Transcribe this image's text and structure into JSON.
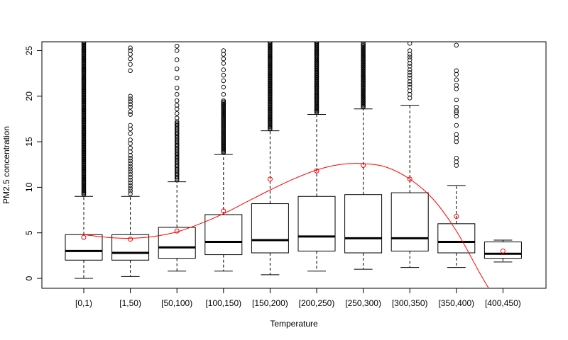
{
  "chart_data": {
    "type": "box",
    "xlabel": "Temperature",
    "ylabel": "PM2.5 concentration",
    "ylim": [
      -1,
      26
    ],
    "yticks": [
      0,
      5,
      10,
      15,
      20,
      25
    ],
    "categories": [
      "[0,1)",
      "[1,50)",
      "[50,100)",
      "[100,150)",
      "[150,200)",
      "[200,250)",
      "[250,300)",
      "[300,350)",
      "[350,400)",
      "[400,450)"
    ],
    "boxes": [
      {
        "whisker_low": 0.0,
        "q1": 2.0,
        "median": 3.0,
        "q3": 4.8,
        "whisker_high": 9.0,
        "mean": 4.5,
        "outliers_from": 9.2,
        "outliers_to": 26,
        "outlier_count": 140
      },
      {
        "whisker_low": 0.2,
        "q1": 2.0,
        "median": 2.8,
        "q3": 4.8,
        "whisker_high": 9.0,
        "mean": 4.3,
        "outliers": [
          9.3,
          9.6,
          9.9,
          10.2,
          10.5,
          10.8,
          11.1,
          11.4,
          11.7,
          12.0,
          12.3,
          12.6,
          12.9,
          13.2,
          13.5,
          13.9,
          14.3,
          14.8,
          15.2,
          15.9,
          16.4,
          16.8,
          18.0,
          18.3,
          18.8,
          19.1,
          19.4,
          19.7,
          20.0,
          22.8,
          23.5,
          24.1,
          24.6,
          25.0,
          25.3
        ]
      },
      {
        "whisker_low": 0.8,
        "q1": 2.2,
        "median": 3.4,
        "q3": 5.6,
        "whisker_high": 10.6,
        "mean": 5.2,
        "outliers_from": 10.8,
        "outliers_to": 17.2,
        "outlier_count": 45,
        "outliers": [
          17.6,
          18.1,
          18.6,
          19.0,
          19.5,
          20.2,
          20.9,
          22.0,
          23.0,
          24.0,
          25.0,
          25.5
        ]
      },
      {
        "whisker_low": 0.8,
        "q1": 2.6,
        "median": 4.0,
        "q3": 7.0,
        "whisker_high": 13.6,
        "mean": 7.4,
        "outliers_from": 13.8,
        "outliers_to": 19.5,
        "outlier_count": 50,
        "outliers": [
          20.2,
          21.0,
          21.7,
          22.3,
          22.9,
          23.6,
          24.1,
          24.6,
          25.0
        ]
      },
      {
        "whisker_low": 0.4,
        "q1": 2.8,
        "median": 4.2,
        "q3": 8.2,
        "whisker_high": 16.2,
        "mean": 10.9,
        "outliers_from": 16.4,
        "outliers_to": 26,
        "outlier_count": 80
      },
      {
        "whisker_low": 0.8,
        "q1": 3.0,
        "median": 4.6,
        "q3": 9.0,
        "whisker_high": 18.0,
        "mean": 11.8,
        "outliers_from": 18.2,
        "outliers_to": 26,
        "outlier_count": 70
      },
      {
        "whisker_low": 1.0,
        "q1": 2.8,
        "median": 4.4,
        "q3": 9.2,
        "whisker_high": 18.6,
        "mean": 12.4,
        "outliers_from": 18.8,
        "outliers_to": 25.8,
        "outlier_count": 60
      },
      {
        "whisker_low": 1.2,
        "q1": 3.0,
        "median": 4.4,
        "q3": 9.4,
        "whisker_high": 19.0,
        "mean": 10.9,
        "outliers": [
          19.8,
          20.2,
          20.6,
          21.0,
          21.3,
          21.6,
          22.0,
          22.3,
          22.6,
          22.9,
          23.3,
          23.6,
          24.0,
          24.3,
          24.6,
          25.0,
          25.8
        ]
      },
      {
        "whisker_low": 1.2,
        "q1": 2.8,
        "median": 4.0,
        "q3": 6.0,
        "whisker_high": 10.2,
        "mean": 6.8,
        "outliers": [
          12.4,
          12.8,
          13.2,
          15.0,
          15.4,
          15.8,
          16.8,
          17.8,
          18.2,
          18.4,
          18.8,
          19.6,
          20.8,
          21.2,
          21.8,
          22.4,
          22.8,
          25.6
        ]
      },
      {
        "whisker_low": 1.8,
        "q1": 2.2,
        "median": 2.7,
        "q3": 4.0,
        "whisker_high": 4.2,
        "mean": 3.0,
        "outliers": []
      }
    ],
    "trend_curve": {
      "x": [
        1,
        1.5,
        2,
        2.5,
        3,
        3.5,
        4,
        4.5,
        5,
        5.5,
        6,
        6.5,
        7,
        7.5,
        8,
        8.5,
        9,
        9.5,
        9.8
      ],
      "y": [
        4.8,
        4.5,
        4.4,
        4.6,
        5.1,
        6.0,
        7.1,
        8.4,
        9.7,
        10.9,
        11.9,
        12.5,
        12.6,
        12.2,
        10.9,
        8.7,
        5.2,
        0.6,
        -2.0
      ]
    },
    "colors": {
      "box": "#000000",
      "mean": "#ff0000",
      "trend": "#ff0000"
    }
  }
}
